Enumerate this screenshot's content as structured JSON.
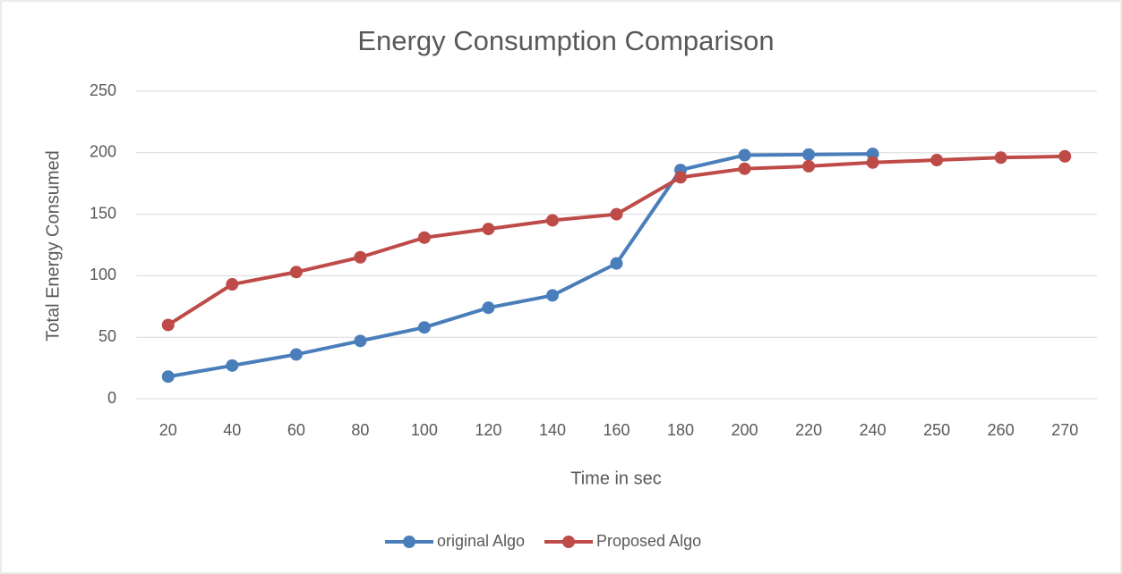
{
  "chart_data": {
    "type": "line",
    "title": "Energy Consumption Comparison",
    "x_label": "Time in sec",
    "y_label": "Total Energy Consumed",
    "categories": [
      "20",
      "40",
      "60",
      "80",
      "100",
      "120",
      "140",
      "160",
      "180",
      "200",
      "220",
      "240",
      "250",
      "260",
      "270"
    ],
    "series": [
      {
        "name": "original Algo",
        "color": "#4a7ebb",
        "values": [
          18,
          27,
          36,
          47,
          58,
          74,
          84,
          110,
          186,
          198,
          198.5,
          199,
          null,
          null,
          null
        ]
      },
      {
        "name": "Proposed Algo",
        "color": "#be4b48",
        "values": [
          60,
          93,
          103,
          115,
          131,
          138,
          145,
          150,
          180,
          187,
          189,
          192,
          194,
          196,
          197
        ]
      }
    ],
    "ylim": [
      0,
      250
    ],
    "yticks": [
      0,
      50,
      100,
      150,
      200,
      250
    ],
    "grid": true,
    "legend": "bottom"
  }
}
